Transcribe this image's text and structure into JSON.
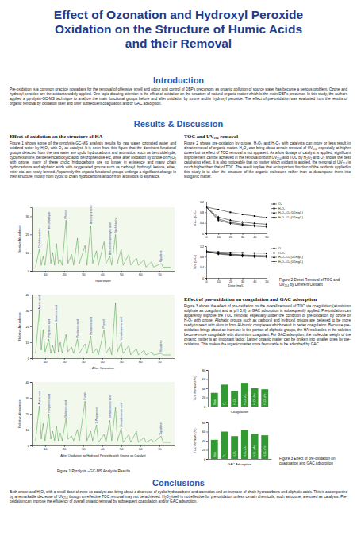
{
  "poster": {
    "title": [
      "Effect of Ozonation and Hydroxyl Peroxide",
      "Oxidation on the Structure of Humic Acids",
      "and their Removal"
    ],
    "introduction": {
      "heading": "Introduction",
      "text": "Pre-oxidation is a common practice nowadays for the removal of offensive smell and odour and control of DBPs precursors as organic pollution of source water has become a serious problem. Ozone and hydroxyl peroxide are the oxidants widely applied. One topic drawing attention is the effect of oxidation on the structure of natural organic matter which is the main DBPs precursor. In this study, the authors applied a pyrolysis-GC-MS technique to analyze the main functional groups before and after oxidation by ozone and/or hydroxyl peroxide. The effect of pre-oxidation was evaluated from the results of organic removal by oxidation itself and after subsequent coagulation and/or GAC adsorption."
    },
    "results_heading": "Results & Discussion",
    "structure": {
      "heading": "Effect of oxidation on the structure of HA",
      "text": "Figure 1 shows some of the pyrolysis-GC-MS analysis results for raw water, ozonated water and oxidized water by H₂O₂ with O₃ as catalyst. It is seen from this figure that the dominant functional groups detected from the raw water are cyclic hydrocarbons and aromatics, such as benzoldehyde, cyclohexanone, benzenetricarboxylic acid, benzophenone etc, while after oxidation by ozone or H₂O₂ with ozone, many of these cyclic hydrocarbons are no longer in existence and many chain hydrocarbons and aliphatic acids with oxygenated groups such as carboxyl, hydroxyl, ketone, ether, ester etc. are newly formed. Apparently the organic functional groups undergo a significant change in their structure, mostly from cyclic to chain hydrocarbons and/or from aromatics to aliphatics.",
      "caption": "Figure 1  Pyrolysis –GC-MS Analysis Results"
    },
    "removal": {
      "heading": "TOC and UV₂₅₄ removal",
      "text": "Figure 2 shows pre-oxidation by ozone, H₂O₂ and H₂O₂ with catalysts can more or less result in direct removal of organic matter. H₂O₂ can bring about certain removal of UV₂₅₄ especially at higher doses but its effect of TOC removal is not apparent. As a low dosage of catalyst is applied, significant improvement can be achieved in the removal of both UV₂₅₄ and TOC by H₂O₂ and O₃ shows the best catalysing effect. It is also noticeable that no matter which oxidant is applied, the removal of UV₂₅₄ is much higher than that of TOC. The result implies that an important function of the oxidants applied in this study is to alter the structure of the organic molecules rather than to decompose them into inorganic matter.",
      "caption": "Figure 2  Direct Removal of TOC and UV₂₅₄ by Different Oxidant"
    },
    "coagulation": {
      "heading": "Effect of pre-oxidation on coagulation and GAC adsorption",
      "text": "Figure 3 shows the effect of pre-oxidation on the overall removal of TOC via coagulation (aluminium sulphate as coagulant and at pH 5.0) or GAC adsorption is subsequently applied. Pre-oxidation can apparently improve the TOC removal, especially under the condition of pre-oxidation by ozone or H₂O₂ with ozone. Aliphatic groups such as carboxyl and hydroxyl groups are believed to be more ready to react with alum to form Al-humic complexes which result in better coagulation. Because pre-oxidation brings about an increase in the portion of aliphatic groups, the HA molecules in the solution become more coagulable with aluminium coagulant. For GAC adsorption, the molecular weight of the organic matter is an important factor. Larger organic matter can be broken into smaller ones by pre-oxidation. This makes the organic matter more favourable to be adsorbed by GAC.",
      "caption": "Figure 3  Effect of pre-oxidation on coagulation and GAC adsorption"
    },
    "conclusions": {
      "heading": "Conclusions",
      "text": "Both ozone and H₂O₂ with a small dose of zone as catalyst can bring about a decrease of cyclic hydrocarbons and aromatics and an increase of chain hydrocarbons and aliphatic acids. This is accompanied by a remarkable decrease of UV₂₅₄ though an effective TOC removal may not be achieved. H₂O₂ itself is not effective for pre-oxidation unless certain chemicals, such as ozone, are used as catalysts. Pre-oxidation can improve the efficiency of overall organic removal by subsequent coagulation and/or GAC adsorption."
    }
  },
  "chart_data": [
    {
      "type": "line",
      "xlabel": "Raw Water",
      "ylabel": "Relative Abundance",
      "color": "#2f8f2f",
      "x": [
        5,
        7,
        8,
        9,
        10,
        12,
        13,
        14,
        15,
        16,
        17,
        18,
        19,
        21,
        22,
        24,
        25,
        27,
        28,
        31,
        32,
        34,
        35,
        37,
        38,
        41,
        42,
        44,
        45,
        47,
        48,
        50,
        51,
        54,
        55,
        58,
        59,
        62,
        63,
        66,
        67,
        71,
        72,
        76
      ],
      "values": [
        2,
        12,
        3,
        8,
        3,
        22,
        4,
        10,
        3,
        15,
        4,
        6,
        3,
        28,
        4,
        9,
        3,
        18,
        4,
        14,
        3,
        25,
        4,
        11,
        3,
        16,
        4,
        8,
        3,
        20,
        4,
        12,
        3,
        9,
        3,
        7,
        3,
        6,
        2,
        5,
        2,
        4,
        2,
        2
      ],
      "xlim": [
        3,
        78
      ],
      "xticks": [
        10,
        20,
        30,
        40,
        50,
        60,
        70
      ],
      "ylim": [
        0,
        35
      ],
      "yticks": [
        0,
        10,
        20,
        30
      ],
      "annotations": [
        {
          "x": 7,
          "y": 12,
          "text": "Cyclohexanone"
        },
        {
          "x": 12,
          "y": 22,
          "text": "Benzaldehyde"
        },
        {
          "x": 21,
          "y": 28,
          "text": "Phenol"
        },
        {
          "x": 34,
          "y": 25,
          "text": "Benzophenone"
        },
        {
          "x": 44,
          "y": 8,
          "text": "Benzenetricarboxylic acid"
        },
        {
          "x": 47,
          "y": 20,
          "text": "Naphthalene"
        },
        {
          "x": 71,
          "y": 4,
          "text": "Squalene"
        }
      ]
    },
    {
      "type": "line",
      "xlabel": "After Ozonation",
      "ylabel": "Relative Abundance",
      "color": "#2f8f2f",
      "x": [
        5,
        7,
        8,
        9,
        10,
        12,
        13,
        14,
        15,
        16,
        17,
        18,
        19,
        21,
        22,
        24,
        25,
        27,
        28,
        31,
        32,
        34,
        35,
        37,
        38,
        41,
        42,
        44,
        45,
        47,
        48,
        50,
        51,
        54,
        55,
        58,
        59,
        62,
        63,
        66,
        67,
        71,
        72,
        76
      ],
      "values": [
        3,
        30,
        5,
        18,
        4,
        12,
        3,
        8,
        3,
        22,
        4,
        10,
        3,
        15,
        4,
        7,
        3,
        12,
        3,
        9,
        3,
        14,
        3,
        6,
        2,
        18,
        3,
        7,
        2,
        35,
        4,
        10,
        3,
        8,
        2,
        6,
        2,
        5,
        2,
        4,
        2,
        3,
        2,
        2
      ],
      "xlim": [
        3,
        78
      ],
      "xticks": [
        10,
        20,
        30,
        40,
        50,
        60,
        70
      ],
      "ylim": [
        0,
        40
      ],
      "yticks": [
        0,
        10,
        20,
        30,
        40
      ],
      "annotations": [
        {
          "x": 7,
          "y": 30,
          "text": "Acetic acid"
        },
        {
          "x": 12,
          "y": 12,
          "text": "Propanoic acid"
        },
        {
          "x": 16,
          "y": 22,
          "text": "Butanoic acid"
        },
        {
          "x": 27,
          "y": 12,
          "text": "Pentanoic acid"
        },
        {
          "x": 34,
          "y": 14,
          "text": "Hexanoic acid"
        },
        {
          "x": 41,
          "y": 18,
          "text": "Phenol"
        },
        {
          "x": 50,
          "y": 10,
          "text": "Hexadecanoic acid"
        },
        {
          "x": 71,
          "y": 3,
          "text": "Squalene"
        }
      ]
    },
    {
      "type": "line",
      "xlabel": "After Oxidation by Hydroxyl Peroxide with Ozone as Catalyst",
      "ylabel": "Relative Abundance",
      "color": "#2f8f2f",
      "x": [
        5,
        7,
        8,
        9,
        10,
        12,
        13,
        14,
        15,
        16,
        17,
        18,
        19,
        21,
        22,
        24,
        25,
        27,
        28,
        31,
        32,
        34,
        35,
        37,
        38,
        41,
        42,
        44,
        45,
        47,
        48,
        50,
        51,
        54,
        55,
        58,
        59,
        62,
        63,
        66,
        67,
        71,
        72,
        76
      ],
      "values": [
        3,
        25,
        4,
        14,
        3,
        20,
        4,
        9,
        3,
        12,
        3,
        8,
        3,
        17,
        4,
        6,
        3,
        10,
        3,
        28,
        3,
        9,
        3,
        13,
        2,
        7,
        2,
        16,
        3,
        24,
        3,
        11,
        2,
        7,
        2,
        9,
        2,
        5,
        2,
        4,
        2,
        6,
        2,
        2
      ],
      "xlim": [
        3,
        78
      ],
      "xticks": [
        10,
        20,
        30,
        40,
        50,
        60,
        70
      ],
      "ylim": [
        0,
        40
      ],
      "yticks": [
        0,
        10,
        20,
        30,
        40
      ],
      "annotations": [
        {
          "x": 7,
          "y": 25,
          "text": "Acetic acid"
        },
        {
          "x": 12,
          "y": 20,
          "text": "Propanoic acid"
        },
        {
          "x": 21,
          "y": 17,
          "text": "Butanoic acid"
        },
        {
          "x": 31,
          "y": 28,
          "text": "Furan"
        },
        {
          "x": 37,
          "y": 13,
          "text": "2-Propanone"
        },
        {
          "x": 44,
          "y": 16,
          "text": "Tetradecanoic acid"
        },
        {
          "x": 50,
          "y": 11,
          "text": "Hexadecanoic acid"
        },
        {
          "x": 71,
          "y": 6,
          "text": "Squalene"
        }
      ]
    },
    {
      "type": "line",
      "ylabel": "UV₂₅₄ (C/C₀)",
      "x": [
        0,
        10,
        20,
        30,
        40,
        50
      ],
      "xlim": [
        0,
        50
      ],
      "xticks": [
        0,
        10,
        20,
        30,
        40,
        50
      ],
      "ylim": [
        0,
        1.2
      ],
      "yticks": [
        0,
        0.4,
        0.8,
        1.2
      ],
      "legend": "right",
      "series": [
        {
          "name": "O₃",
          "color": "#000000",
          "marker": "circle",
          "values": [
            1,
            0.55,
            0.42,
            0.35,
            0.3,
            0.28
          ]
        },
        {
          "name": "H₂O₂",
          "color": "#000000",
          "marker": "square",
          "values": [
            1,
            0.9,
            0.8,
            0.72,
            0.66,
            0.6
          ]
        },
        {
          "name": "H₂O₂+O₃ (0.1mg/L)",
          "color": "#000000",
          "marker": "triangle",
          "values": [
            1,
            0.62,
            0.5,
            0.43,
            0.38,
            0.35
          ]
        },
        {
          "name": "H₂O₂+O₃ (0.5mg/L)",
          "color": "#000000",
          "marker": "diamond",
          "values": [
            1,
            0.5,
            0.38,
            0.32,
            0.28,
            0.25
          ]
        }
      ]
    },
    {
      "type": "line",
      "ylabel": "TOC (C/C₀)",
      "xlabel": "Dose (mg/L)",
      "x": [
        0,
        10,
        20,
        30,
        40,
        50
      ],
      "xlim": [
        0,
        50
      ],
      "xticks": [
        0,
        10,
        20,
        30,
        40,
        50
      ],
      "ylim": [
        0,
        1.2
      ],
      "yticks": [
        0,
        0.4,
        0.8,
        1.2
      ],
      "legend": "right",
      "series": [
        {
          "name": "O₃",
          "color": "#000000",
          "marker": "circle",
          "values": [
            1,
            0.92,
            0.88,
            0.85,
            0.83,
            0.82
          ]
        },
        {
          "name": "H₂O₂",
          "color": "#000000",
          "marker": "square",
          "values": [
            1,
            0.98,
            0.96,
            0.95,
            0.94,
            0.93
          ]
        },
        {
          "name": "H₂O₂+O₃ (0.1mg/L)",
          "color": "#000000",
          "marker": "triangle",
          "values": [
            1,
            0.94,
            0.9,
            0.87,
            0.85,
            0.84
          ]
        },
        {
          "name": "H₂O₂+O₃ (0.5mg/L)",
          "color": "#000000",
          "marker": "diamond",
          "values": [
            1,
            0.9,
            0.86,
            0.82,
            0.8,
            0.79
          ]
        }
      ]
    },
    {
      "type": "bar",
      "xlabel": "Coagulation",
      "ylabel": "TOC Removal (%)",
      "categories": [
        "Raw",
        "O₃",
        "H₂O₂",
        "H₂O₂+O₃",
        "H₂O₂+Mn",
        "H₂O₂+Fe"
      ],
      "values": [
        30,
        48,
        34,
        52,
        40,
        38
      ],
      "color": "#339933",
      "ylim": [
        0,
        80
      ],
      "yticks": [
        0,
        20,
        40,
        60,
        80
      ]
    },
    {
      "type": "bar",
      "xlabel": "GAC Adsorption",
      "ylabel": "TOC Removal (%)",
      "categories": [
        "Raw",
        "O₃",
        "H₂O₂",
        "H₂O₂+O₃",
        "H₂O₂+Mn",
        "H₂O₂+Fe"
      ],
      "values": [
        42,
        60,
        50,
        64,
        55,
        52
      ],
      "color": "#339933",
      "ylim": [
        0,
        80
      ],
      "yticks": [
        0,
        20,
        40,
        60,
        80
      ]
    }
  ]
}
